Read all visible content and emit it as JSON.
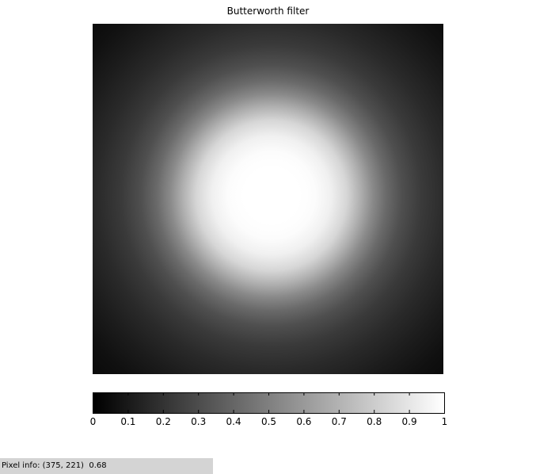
{
  "title": "Butterworth filter",
  "colormap": {
    "low": "#000000",
    "high": "#ffffff"
  },
  "colorbar": {
    "min": 0,
    "max": 1,
    "ticks": [
      "0",
      "0.1",
      "0.2",
      "0.3",
      "0.4",
      "0.5",
      "0.6",
      "0.7",
      "0.8",
      "0.9",
      "1"
    ]
  },
  "pixel_info": {
    "label": "Pixel info:",
    "coords": "(375, 221)",
    "value": "0.68"
  }
}
